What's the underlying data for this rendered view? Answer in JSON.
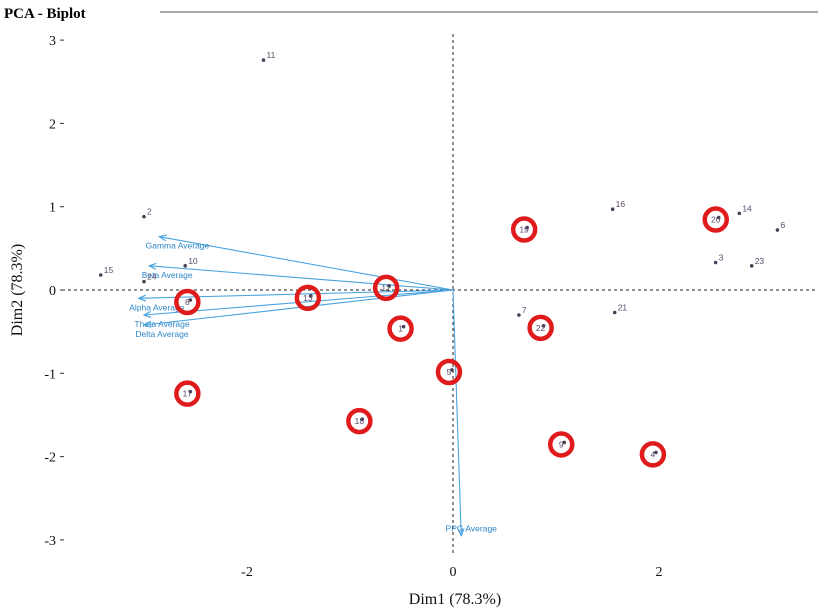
{
  "chart_data": {
    "type": "scatter",
    "title": "PCA - Biplot",
    "xlabel": "Dim1 (78.3%)",
    "ylabel": "Dim2 (78.3%)",
    "xlim": [
      -3.6,
      3.5
    ],
    "ylim": [
      -3.1,
      3.1
    ],
    "xticks": [
      -2,
      0,
      2
    ],
    "yticks": [
      3,
      2,
      1,
      0,
      -1,
      -2,
      -3
    ],
    "grid": false,
    "points": [
      {
        "label": "11",
        "x": -1.84,
        "y": 2.76,
        "highlighted": false
      },
      {
        "label": "2",
        "x": -3.0,
        "y": 0.88,
        "highlighted": false
      },
      {
        "label": "10",
        "x": -2.6,
        "y": 0.29,
        "highlighted": false
      },
      {
        "label": "15",
        "x": -3.42,
        "y": 0.18,
        "highlighted": false
      },
      {
        "label": "24",
        "x": -3.0,
        "y": 0.1,
        "highlighted": false
      },
      {
        "label": "8",
        "x": -2.55,
        "y": -0.12,
        "highlighted": true
      },
      {
        "label": "13",
        "x": -1.38,
        "y": -0.07,
        "highlighted": true
      },
      {
        "label": "12",
        "x": -0.62,
        "y": 0.05,
        "highlighted": true
      },
      {
        "label": "1",
        "x": -0.48,
        "y": -0.44,
        "highlighted": true
      },
      {
        "label": "17",
        "x": -2.55,
        "y": -1.22,
        "highlighted": true
      },
      {
        "label": "18",
        "x": -0.88,
        "y": -1.55,
        "highlighted": true
      },
      {
        "label": "5",
        "x": -0.01,
        "y": -0.96,
        "highlighted": true
      },
      {
        "label": "19",
        "x": 0.72,
        "y": 0.75,
        "highlighted": true
      },
      {
        "label": "7",
        "x": 0.64,
        "y": -0.3,
        "highlighted": false
      },
      {
        "label": "22",
        "x": 0.88,
        "y": -0.43,
        "highlighted": true
      },
      {
        "label": "16",
        "x": 1.55,
        "y": 0.97,
        "highlighted": false
      },
      {
        "label": "21",
        "x": 1.57,
        "y": -0.27,
        "highlighted": false
      },
      {
        "label": "9",
        "x": 1.08,
        "y": -1.83,
        "highlighted": true
      },
      {
        "label": "4",
        "x": 1.97,
        "y": -1.95,
        "highlighted": true
      },
      {
        "label": "20",
        "x": 2.58,
        "y": 0.87,
        "highlighted": true
      },
      {
        "label": "14",
        "x": 2.78,
        "y": 0.92,
        "highlighted": false
      },
      {
        "label": "6",
        "x": 3.15,
        "y": 0.72,
        "highlighted": false
      },
      {
        "label": "3",
        "x": 2.55,
        "y": 0.33,
        "highlighted": false
      },
      {
        "label": "23",
        "x": 2.9,
        "y": 0.29,
        "highlighted": false
      }
    ],
    "variables": [
      {
        "name": "Gamma Average",
        "x": -2.85,
        "y": 0.64
      },
      {
        "name": "Beta Average",
        "x": -2.95,
        "y": 0.29
      },
      {
        "name": "Alpha Average",
        "x": -3.05,
        "y": -0.1
      },
      {
        "name": "Theta Average",
        "x": -3.0,
        "y": -0.3
      },
      {
        "name": "Delta Average",
        "x": -3.0,
        "y": -0.42
      },
      {
        "name": "PPG Average",
        "x": 0.08,
        "y": -2.95
      }
    ],
    "colors": {
      "point": "#4a3f57",
      "point_label": "#5a4a6a",
      "variable_arrow": "#4aa3df",
      "variable_label": "#2e86c8",
      "highlight_ring": "#e01b1b",
      "axis_line": "#222222"
    }
  }
}
